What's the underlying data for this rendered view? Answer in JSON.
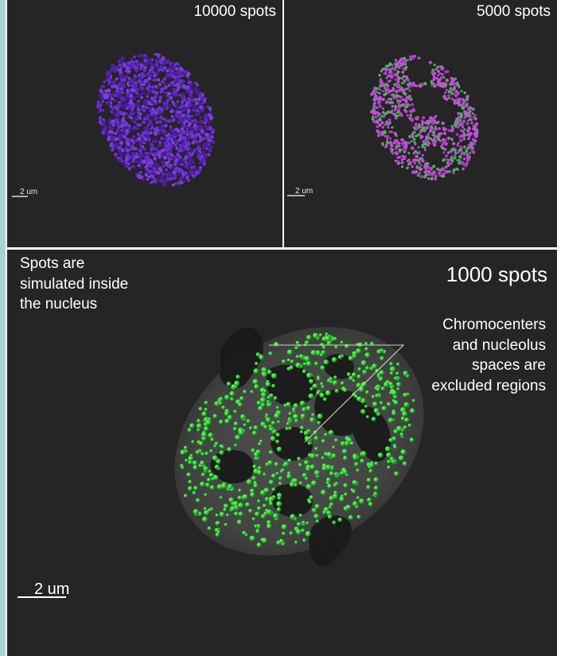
{
  "panels": {
    "top_left": {
      "count_label": "10000 spots",
      "scale_label": "2 um",
      "spot_color": "#6a2fd0"
    },
    "top_right": {
      "count_label": "5000 spots",
      "scale_label": "2 um",
      "spot_colors": [
        "#c050d8",
        "#38c040"
      ]
    },
    "bottom": {
      "count_label": "1000 spots",
      "scale_label": "2 um",
      "spot_color": "#2ec82e",
      "note_left": [
        "Spots are",
        "simulated inside",
        "the nucleus"
      ],
      "note_right": [
        "Chromocenters",
        "and nucleolus",
        "spaces are",
        "excluded regions"
      ]
    }
  },
  "colors": {
    "panel_background": "#252525",
    "accent_strip": "#a8d4cf",
    "divider": "#ffffff"
  }
}
